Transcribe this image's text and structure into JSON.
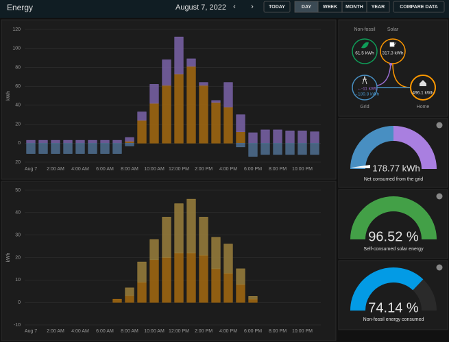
{
  "header": {
    "title": "Energy",
    "date": "August 7, 2022",
    "buttons": [
      "TODAY",
      "DAY",
      "WEEK",
      "MONTH",
      "YEAR",
      "COMPARE DATA"
    ]
  },
  "charts": [
    {
      "type": "bar",
      "stacked": true,
      "y_label": "kWh",
      "grid": true,
      "categories": [
        "Aug 7",
        null,
        "2:00 AM",
        null,
        "4:00 AM",
        null,
        "6:00 AM",
        null,
        "8:00 AM",
        null,
        "10:00 AM",
        null,
        "12:00 PM",
        null,
        "2:00 PM",
        null,
        "4:00 PM",
        null,
        "6:00 PM",
        null,
        "8:00 PM",
        null,
        "10:00 PM",
        null
      ],
      "series": [
        {
          "color": "#a46a10",
          "values": [
            0,
            0,
            0,
            0,
            0,
            0,
            0,
            0,
            2,
            24,
            42,
            61,
            73,
            81,
            61,
            43,
            38,
            12,
            0,
            0,
            0,
            0,
            0,
            0
          ]
        },
        {
          "color": "#7a63a8",
          "values": [
            3,
            3,
            3,
            3,
            3,
            3,
            3,
            3,
            4,
            9,
            20,
            27,
            39,
            8,
            3,
            2,
            26,
            18,
            11,
            14,
            14,
            13,
            13,
            12
          ]
        },
        {
          "color": "#4f6f91",
          "values": [
            -11,
            -11,
            -11,
            -11,
            -11,
            -11,
            -11,
            -11,
            -3,
            0,
            0,
            0,
            0,
            0,
            0,
            0,
            0,
            -4,
            -14,
            -12,
            -12,
            -12,
            -12,
            -12
          ]
        }
      ],
      "ylim": [
        -20,
        120
      ],
      "yticks": [
        120,
        100,
        80,
        60,
        40,
        20,
        0,
        {
          "value": -20,
          "label": "20"
        }
      ]
    },
    {
      "type": "bar",
      "stacked": true,
      "y_label": "kWh",
      "grid": true,
      "categories": [
        "Aug 7",
        null,
        "2:00 AM",
        null,
        "4:00 AM",
        null,
        "6:00 AM",
        null,
        "8:00 AM",
        null,
        "10:00 AM",
        null,
        "12:00 PM",
        null,
        "2:00 PM",
        null,
        "4:00 PM",
        null,
        "6:00 PM",
        null,
        "8:00 PM",
        null,
        "10:00 PM",
        null
      ],
      "series": [
        {
          "color": "#a46a10",
          "values": [
            0,
            0,
            0,
            0,
            0,
            0,
            0,
            1.5,
            3,
            9,
            19,
            20,
            22,
            22,
            21,
            15,
            13,
            8,
            1.5,
            0,
            0,
            0,
            0,
            0
          ]
        },
        {
          "color": "#9a7f3c",
          "values": [
            0,
            0,
            0,
            0,
            0,
            0,
            0,
            0,
            3.5,
            9,
            9,
            18,
            22,
            24,
            17,
            14,
            13,
            7,
            1.2,
            0,
            0,
            0,
            0,
            0
          ]
        }
      ],
      "ylim": [
        -10,
        50
      ],
      "yticks": [
        50,
        40,
        30,
        20,
        10,
        0,
        -10
      ]
    }
  ],
  "distribution": {
    "non_fossil_label": "Non-fossil",
    "non_fossil_value": "61.5 kWh",
    "solar_label": "Solar",
    "solar_value": "317.3 kWh",
    "grid_label": "Grid",
    "grid_return": "-11 kWh",
    "grid_consumed": "189.8 kWh",
    "home_label": "Home",
    "home_value": "496.1 kWh"
  },
  "gauges": [
    {
      "value": "178.77 kWh",
      "caption": "Net consumed from the grid"
    },
    {
      "value": "96.52 %",
      "caption": "Self-consumed solar energy"
    },
    {
      "value": "74.14 %",
      "caption": "Non-fossil energy consumed"
    }
  ]
}
